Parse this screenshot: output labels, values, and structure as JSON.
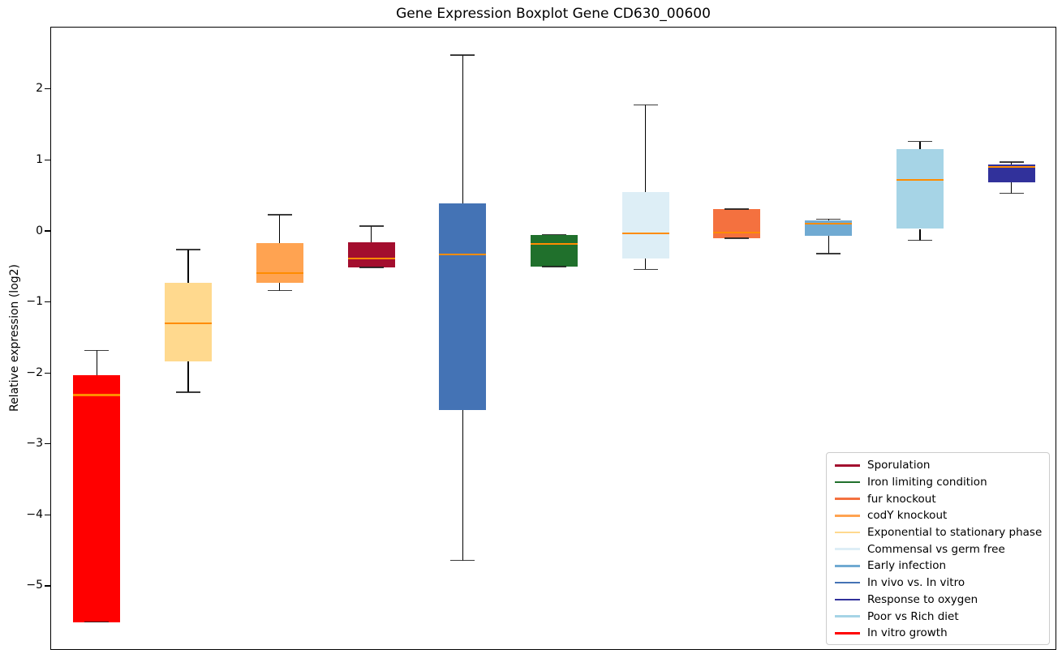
{
  "title": "Gene Expression Boxplot Gene CD630_00600",
  "ylabel": "Relative expression (log2)",
  "chart_data": {
    "type": "boxplot",
    "title": "Gene Expression Boxplot Gene CD630_00600",
    "xlabel": "",
    "ylabel": "Relative expression (log2)",
    "ylim": [
      -5.902,
      2.877
    ],
    "yticks": [
      2,
      1,
      0,
      -1,
      -2,
      -3,
      -4,
      -5
    ],
    "ytick_labels": [
      "2",
      "1",
      "0",
      "−1",
      "−2",
      "−3",
      "−4",
      "−5"
    ],
    "grid": false,
    "x_axis_labels": "none",
    "median_color": "#ff8c00",
    "whisker_color": "#000000",
    "legend_position": "lower right",
    "boxes": [
      {
        "label": "In vitro growth",
        "color": "#ff0000",
        "whisker_low": -5.5,
        "q1": -5.5,
        "median": -2.3,
        "q3": -2.02,
        "whisker_high": -1.67
      },
      {
        "label": "Exponential to stationary phase",
        "color": "#ffd98e",
        "whisker_low": -2.26,
        "q1": -1.83,
        "median": -1.29,
        "q3": -0.72,
        "whisker_high": -0.25
      },
      {
        "label": "codY knockout",
        "color": "#ffa351",
        "whisker_low": -0.83,
        "q1": -0.72,
        "median": -0.58,
        "q3": -0.16,
        "whisker_high": 0.24
      },
      {
        "label": "Sporulation",
        "color": "#a30e2e",
        "whisker_low": -0.5,
        "q1": -0.5,
        "median": -0.38,
        "q3": -0.15,
        "whisker_high": 0.08
      },
      {
        "label": "In vivo vs. In vitro",
        "color": "#4473b5",
        "whisker_low": -4.63,
        "q1": -2.51,
        "median": -0.32,
        "q3": 0.4,
        "whisker_high": 2.49
      },
      {
        "label": "Iron limiting condition",
        "color": "#20702c",
        "whisker_low": -0.49,
        "q1": -0.49,
        "median": -0.17,
        "q3": -0.04,
        "whisker_high": -0.04
      },
      {
        "label": "Commensal vs germ free",
        "color": "#ddeef6",
        "whisker_low": -0.53,
        "q1": -0.38,
        "median": -0.02,
        "q3": 0.56,
        "whisker_high": 1.79
      },
      {
        "label": "fur knockout",
        "color": "#f4713f",
        "whisker_low": -0.09,
        "q1": -0.09,
        "median": -0.01,
        "q3": 0.32,
        "whisker_high": 0.32
      },
      {
        "label": "Early infection",
        "color": "#70aad2",
        "whisker_low": -0.31,
        "q1": -0.06,
        "median": 0.11,
        "q3": 0.16,
        "whisker_high": 0.18
      },
      {
        "label": "Poor vs Rich diet",
        "color": "#a6d4e6",
        "whisker_low": -0.12,
        "q1": 0.04,
        "median": 0.73,
        "q3": 1.17,
        "whisker_high": 1.27
      },
      {
        "label": "Response to oxygen",
        "color": "#31319b",
        "whisker_low": 0.54,
        "q1": 0.7,
        "median": 0.91,
        "q3": 0.95,
        "whisker_high": 0.98
      }
    ],
    "legend": [
      {
        "label": "Sporulation",
        "color": "#a30e2e"
      },
      {
        "label": "Iron limiting condition",
        "color": "#20702c"
      },
      {
        "label": "fur knockout",
        "color": "#f4713f"
      },
      {
        "label": "codY knockout",
        "color": "#ffa351"
      },
      {
        "label": "Exponential to stationary phase",
        "color": "#ffd98e"
      },
      {
        "label": "Commensal vs germ free",
        "color": "#ddeef6"
      },
      {
        "label": "Early infection",
        "color": "#70aad2"
      },
      {
        "label": "In vivo vs. In vitro",
        "color": "#4473b5"
      },
      {
        "label": "Response to oxygen",
        "color": "#31319b"
      },
      {
        "label": "Poor vs Rich diet",
        "color": "#a6d4e6"
      },
      {
        "label": "In vitro growth",
        "color": "#ff0000"
      }
    ]
  }
}
